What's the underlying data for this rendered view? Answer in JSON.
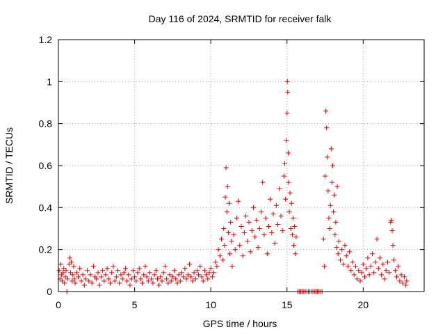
{
  "chart_data": {
    "type": "scatter",
    "title": "Day 116 of 2024, SRMTID for receiver falk",
    "xlabel": "GPS time / hours",
    "ylabel": "SRMTID / TECUs",
    "xlim": [
      0,
      24
    ],
    "ylim": [
      0,
      1.2
    ],
    "x_ticks": [
      0,
      5,
      10,
      15,
      20
    ],
    "x_tick_labels": [
      "0",
      "5",
      "10",
      "15",
      "20"
    ],
    "y_ticks": [
      0,
      0.2,
      0.4,
      0.6,
      0.8,
      1.0,
      1.2
    ],
    "y_tick_labels": [
      "0",
      "0.2",
      "0.4",
      "0.6",
      "0.8",
      "1",
      "1.2"
    ],
    "grid": true,
    "marker": "plus",
    "color": "#e00000",
    "series": [
      {
        "name": "SRMTID",
        "points": [
          [
            0.05,
            0.1
          ],
          [
            0.1,
            0.06
          ],
          [
            0.15,
            0.13
          ],
          [
            0.2,
            0.08
          ],
          [
            0.25,
            0.05
          ],
          [
            0.3,
            0.09
          ],
          [
            0.35,
            0.11
          ],
          [
            0.4,
            0.04
          ],
          [
            0.45,
            0.07
          ],
          [
            0.5,
            0.1
          ],
          [
            0.55,
            0.0
          ],
          [
            0.6,
            0.06
          ],
          [
            0.7,
            0.13
          ],
          [
            0.75,
            0.16
          ],
          [
            0.8,
            0.09
          ],
          [
            0.85,
            0.14
          ],
          [
            0.9,
            0.05
          ],
          [
            0.95,
            0.08
          ],
          [
            1.0,
            0.12
          ],
          [
            1.05,
            0.06
          ],
          [
            1.1,
            0.04
          ],
          [
            1.2,
            0.09
          ],
          [
            1.3,
            0.07
          ],
          [
            1.4,
            0.11
          ],
          [
            1.5,
            0.05
          ],
          [
            1.6,
            0.08
          ],
          [
            1.7,
            0.03
          ],
          [
            1.8,
            0.06
          ],
          [
            1.9,
            0.1
          ],
          [
            2.0,
            0.05
          ],
          [
            2.1,
            0.08
          ],
          [
            2.2,
            0.04
          ],
          [
            2.3,
            0.12
          ],
          [
            2.4,
            0.07
          ],
          [
            2.5,
            0.06
          ],
          [
            2.6,
            0.09
          ],
          [
            2.7,
            0.03
          ],
          [
            2.8,
            0.07
          ],
          [
            2.9,
            0.1
          ],
          [
            3.0,
            0.05
          ],
          [
            3.1,
            0.08
          ],
          [
            3.2,
            0.11
          ],
          [
            3.3,
            0.06
          ],
          [
            3.4,
            0.04
          ],
          [
            3.5,
            0.09
          ],
          [
            3.6,
            0.12
          ],
          [
            3.7,
            0.05
          ],
          [
            3.8,
            0.07
          ],
          [
            3.9,
            0.1
          ],
          [
            4.0,
            0.04
          ],
          [
            4.1,
            0.08
          ],
          [
            4.2,
            0.06
          ],
          [
            4.3,
            0.09
          ],
          [
            4.4,
            0.11
          ],
          [
            4.5,
            0.05
          ],
          [
            4.6,
            0.08
          ],
          [
            4.7,
            0.03
          ],
          [
            4.8,
            0.06
          ],
          [
            4.9,
            0.1
          ],
          [
            5.0,
            0.07
          ],
          [
            5.1,
            0.05
          ],
          [
            5.2,
            0.09
          ],
          [
            5.3,
            0.11
          ],
          [
            5.4,
            0.06
          ],
          [
            5.5,
            0.04
          ],
          [
            5.6,
            0.08
          ],
          [
            5.7,
            0.12
          ],
          [
            5.8,
            0.07
          ],
          [
            5.9,
            0.05
          ],
          [
            6.0,
            0.09
          ],
          [
            6.1,
            0.06
          ],
          [
            6.2,
            0.04
          ],
          [
            6.3,
            0.08
          ],
          [
            6.4,
            0.1
          ],
          [
            6.5,
            0.06
          ],
          [
            6.6,
            0.03
          ],
          [
            6.7,
            0.07
          ],
          [
            6.8,
            0.05
          ],
          [
            6.9,
            0.09
          ],
          [
            7.0,
            0.12
          ],
          [
            7.1,
            0.06
          ],
          [
            7.2,
            0.04
          ],
          [
            7.3,
            0.08
          ],
          [
            7.4,
            0.05
          ],
          [
            7.5,
            0.07
          ],
          [
            7.6,
            0.1
          ],
          [
            7.7,
            0.06
          ],
          [
            7.8,
            0.04
          ],
          [
            7.9,
            0.08
          ],
          [
            8.0,
            0.05
          ],
          [
            8.1,
            0.09
          ],
          [
            8.2,
            0.07
          ],
          [
            8.3,
            0.11
          ],
          [
            8.4,
            0.06
          ],
          [
            8.5,
            0.08
          ],
          [
            8.6,
            0.13
          ],
          [
            8.7,
            0.07
          ],
          [
            8.8,
            0.05
          ],
          [
            8.9,
            0.09
          ],
          [
            9.0,
            0.06
          ],
          [
            9.1,
            0.1
          ],
          [
            9.2,
            0.08
          ],
          [
            9.3,
            0.12
          ],
          [
            9.4,
            0.07
          ],
          [
            9.5,
            0.05
          ],
          [
            9.6,
            0.1
          ],
          [
            9.7,
            0.08
          ],
          [
            9.8,
            0.06
          ],
          [
            9.9,
            0.09
          ],
          [
            10.0,
            0.11
          ],
          [
            10.1,
            0.07
          ],
          [
            10.2,
            0.09
          ],
          [
            10.3,
            0.14
          ],
          [
            10.4,
            0.12
          ],
          [
            10.5,
            0.2
          ],
          [
            10.6,
            0.17
          ],
          [
            10.7,
            0.25
          ],
          [
            10.8,
            0.15
          ],
          [
            10.85,
            0.3
          ],
          [
            10.9,
            0.22
          ],
          [
            10.95,
            0.45
          ],
          [
            11.0,
            0.59
          ],
          [
            11.05,
            0.38
          ],
          [
            11.1,
            0.5
          ],
          [
            11.15,
            0.28
          ],
          [
            11.2,
            0.42
          ],
          [
            11.25,
            0.18
          ],
          [
            11.3,
            0.33
          ],
          [
            11.35,
            0.24
          ],
          [
            11.4,
            0.12
          ],
          [
            11.5,
            0.27
          ],
          [
            11.6,
            0.2
          ],
          [
            11.7,
            0.35
          ],
          [
            11.8,
            0.43
          ],
          [
            11.9,
            0.22
          ],
          [
            12.0,
            0.31
          ],
          [
            12.1,
            0.17
          ],
          [
            12.2,
            0.28
          ],
          [
            12.3,
            0.36
          ],
          [
            12.4,
            0.24
          ],
          [
            12.5,
            0.33
          ],
          [
            12.6,
            0.19
          ],
          [
            12.7,
            0.29
          ],
          [
            12.8,
            0.4
          ],
          [
            12.9,
            0.26
          ],
          [
            13.0,
            0.34
          ],
          [
            13.1,
            0.21
          ],
          [
            13.2,
            0.3
          ],
          [
            13.3,
            0.38
          ],
          [
            13.4,
            0.52
          ],
          [
            13.5,
            0.27
          ],
          [
            13.6,
            0.35
          ],
          [
            13.7,
            0.18
          ],
          [
            13.8,
            0.31
          ],
          [
            13.9,
            0.44
          ],
          [
            14.0,
            0.28
          ],
          [
            14.1,
            0.37
          ],
          [
            14.2,
            0.23
          ],
          [
            14.3,
            0.41
          ],
          [
            14.4,
            0.32
          ],
          [
            14.5,
            0.49
          ],
          [
            14.6,
            0.36
          ],
          [
            14.7,
            0.29
          ],
          [
            14.8,
            0.55
          ],
          [
            14.85,
            0.61
          ],
          [
            14.9,
            0.44
          ],
          [
            14.95,
            0.72
          ],
          [
            15.0,
            0.85
          ],
          [
            15.02,
            1.0
          ],
          [
            15.05,
            0.95
          ],
          [
            15.08,
            0.66
          ],
          [
            15.1,
            0.52
          ],
          [
            15.15,
            0.38
          ],
          [
            15.2,
            0.47
          ],
          [
            15.25,
            0.3
          ],
          [
            15.3,
            0.42
          ],
          [
            15.35,
            0.27
          ],
          [
            15.4,
            0.35
          ],
          [
            15.45,
            0.22
          ],
          [
            15.5,
            0.31
          ],
          [
            15.55,
            0.18
          ],
          [
            15.6,
            0.26
          ],
          [
            15.7,
            0.0
          ],
          [
            15.8,
            0.0
          ],
          [
            15.9,
            0.0
          ],
          [
            16.0,
            0.0
          ],
          [
            16.1,
            0.0
          ],
          [
            16.2,
            0.0
          ],
          [
            16.3,
            0.0
          ],
          [
            16.4,
            0.0
          ],
          [
            16.5,
            0.0
          ],
          [
            16.6,
            0.0
          ],
          [
            16.7,
            0.0
          ],
          [
            16.8,
            0.0
          ],
          [
            16.9,
            0.0
          ],
          [
            17.0,
            0.0
          ],
          [
            17.1,
            0.0
          ],
          [
            17.2,
            0.0
          ],
          [
            17.3,
            0.0
          ],
          [
            17.4,
            0.25
          ],
          [
            17.45,
            0.12
          ],
          [
            17.5,
            0.55
          ],
          [
            17.55,
            0.86
          ],
          [
            17.6,
            0.78
          ],
          [
            17.65,
            0.64
          ],
          [
            17.7,
            0.48
          ],
          [
            17.75,
            0.35
          ],
          [
            17.8,
            0.3
          ],
          [
            17.85,
            0.41
          ],
          [
            17.9,
            0.68
          ],
          [
            17.95,
            0.52
          ],
          [
            18.0,
            0.6
          ],
          [
            18.05,
            0.38
          ],
          [
            18.1,
            0.46
          ],
          [
            18.15,
            0.27
          ],
          [
            18.2,
            0.33
          ],
          [
            18.25,
            0.21
          ],
          [
            18.3,
            0.5
          ],
          [
            18.35,
            0.18
          ],
          [
            18.4,
            0.24
          ],
          [
            18.5,
            0.15
          ],
          [
            18.6,
            0.2
          ],
          [
            18.7,
            0.13
          ],
          [
            18.8,
            0.22
          ],
          [
            18.9,
            0.17
          ],
          [
            19.0,
            0.12
          ],
          [
            19.1,
            0.19
          ],
          [
            19.2,
            0.1
          ],
          [
            19.3,
            0.14
          ],
          [
            19.4,
            0.08
          ],
          [
            19.5,
            0.12
          ],
          [
            19.6,
            0.06
          ],
          [
            19.7,
            0.1
          ],
          [
            19.8,
            0.05
          ],
          [
            19.9,
            0.09
          ],
          [
            20.0,
            0.13
          ],
          [
            20.1,
            0.07
          ],
          [
            20.2,
            0.11
          ],
          [
            20.3,
            0.16
          ],
          [
            20.4,
            0.08
          ],
          [
            20.5,
            0.12
          ],
          [
            20.6,
            0.18
          ],
          [
            20.7,
            0.09
          ],
          [
            20.8,
            0.14
          ],
          [
            20.9,
            0.25
          ],
          [
            21.0,
            0.11
          ],
          [
            21.1,
            0.16
          ],
          [
            21.2,
            0.08
          ],
          [
            21.3,
            0.13
          ],
          [
            21.4,
            0.06
          ],
          [
            21.5,
            0.1
          ],
          [
            21.6,
            0.14
          ],
          [
            21.7,
            0.09
          ],
          [
            21.8,
            0.33
          ],
          [
            21.85,
            0.34
          ],
          [
            21.9,
            0.29
          ],
          [
            21.95,
            0.22
          ],
          [
            22.0,
            0.15
          ],
          [
            22.1,
            0.1
          ],
          [
            22.2,
            0.07
          ],
          [
            22.3,
            0.12
          ],
          [
            22.4,
            0.05
          ],
          [
            22.5,
            0.08
          ],
          [
            22.6,
            0.04
          ],
          [
            22.7,
            0.07
          ],
          [
            22.8,
            0.03
          ],
          [
            22.85,
            0.05
          ]
        ]
      }
    ]
  }
}
